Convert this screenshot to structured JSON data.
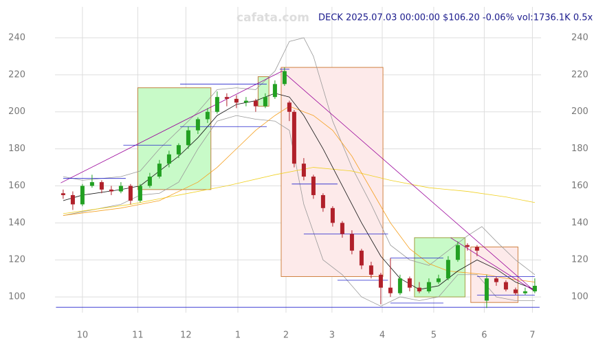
{
  "chart_data": {
    "type": "candlestick",
    "title": "DECK 2025.07.03 00:00:00 $106.20 -0.06% vol:1736.1K 0.5x",
    "watermark": "cafata.com",
    "xlim": [
      -11.4,
      190.6
    ],
    "ylim": [
      91.5,
      256.7
    ],
    "xticks": [
      {
        "value": 0,
        "label": "10"
      },
      {
        "value": 23,
        "label": "11"
      },
      {
        "value": 43,
        "label": "12"
      },
      {
        "value": 64.6,
        "label": "1"
      },
      {
        "value": 84.6,
        "label": "2"
      },
      {
        "value": 103.7,
        "label": "3"
      },
      {
        "value": 124.6,
        "label": "4"
      },
      {
        "value": 146,
        "label": "5"
      },
      {
        "value": 167,
        "label": "6"
      },
      {
        "value": 187,
        "label": "7"
      }
    ],
    "yticks": [
      100,
      120,
      140,
      160,
      180,
      200,
      220,
      240
    ],
    "grid": true,
    "up_color": "#22a022",
    "down_color": "#b0202a",
    "candles": [
      [
        -8,
        156,
        158,
        153,
        155
      ],
      [
        -4,
        155,
        157,
        147,
        150
      ],
      [
        0,
        150,
        161,
        149,
        160
      ],
      [
        4,
        160,
        166,
        159,
        162
      ],
      [
        8,
        162,
        163,
        156,
        158
      ],
      [
        12,
        158,
        160,
        155,
        157
      ],
      [
        16,
        157,
        162,
        156,
        160
      ],
      [
        20,
        160,
        161,
        150,
        152
      ],
      [
        24,
        152,
        161,
        151,
        160
      ],
      [
        28,
        160,
        167,
        159,
        165
      ],
      [
        32,
        165,
        174,
        164,
        172
      ],
      [
        36,
        172,
        179,
        170,
        177
      ],
      [
        40,
        177,
        183,
        175,
        182
      ],
      [
        44,
        182,
        192,
        180,
        190
      ],
      [
        48,
        190,
        197,
        188,
        196
      ],
      [
        52,
        196,
        202,
        194,
        200
      ],
      [
        56,
        200,
        211,
        199,
        208
      ],
      [
        60,
        208,
        210,
        203,
        207
      ],
      [
        64,
        207,
        209,
        202,
        205
      ],
      [
        68,
        205,
        208,
        203,
        206
      ],
      [
        72,
        206,
        207,
        200,
        203
      ],
      [
        76,
        203,
        210,
        202,
        208
      ],
      [
        80,
        208,
        217,
        207,
        215
      ],
      [
        84,
        215,
        224,
        214,
        222
      ],
      [
        86,
        205,
        206,
        195,
        200
      ],
      [
        88,
        200,
        201,
        170,
        172
      ],
      [
        92,
        172,
        175,
        163,
        165
      ],
      [
        96,
        165,
        166,
        153,
        155
      ],
      [
        100,
        155,
        156,
        146,
        148
      ],
      [
        104,
        148,
        149,
        138,
        140
      ],
      [
        108,
        140,
        141,
        132,
        134
      ],
      [
        112,
        134,
        136,
        123,
        125
      ],
      [
        116,
        125,
        126,
        115,
        117
      ],
      [
        120,
        117,
        119,
        110,
        112
      ],
      [
        124,
        112,
        113,
        96,
        105
      ],
      [
        128,
        105,
        121,
        100,
        102
      ],
      [
        132,
        102,
        112,
        101,
        110
      ],
      [
        136,
        110,
        111,
        103,
        105
      ],
      [
        140,
        105,
        108,
        102,
        103
      ],
      [
        144,
        103,
        110,
        102,
        108
      ],
      [
        148,
        108,
        112,
        107,
        110
      ],
      [
        152,
        110,
        122,
        109,
        120
      ],
      [
        156,
        120,
        130,
        119,
        128
      ],
      [
        160,
        128,
        129,
        125,
        127
      ],
      [
        164,
        127,
        128,
        122,
        125
      ],
      [
        168,
        98,
        112,
        94,
        110
      ],
      [
        172,
        110,
        111,
        106,
        108
      ],
      [
        176,
        108,
        109,
        103,
        104
      ],
      [
        180,
        104,
        105,
        101,
        102
      ],
      [
        184,
        102,
        105,
        101,
        103
      ],
      [
        188,
        103,
        110,
        102,
        106
      ]
    ],
    "zones": [
      {
        "x": [
          23,
          53.4
        ],
        "y": [
          158,
          213
        ],
        "fill": "#c8fac8",
        "stroke": "#c08040"
      },
      {
        "x": [
          73,
          77.5
        ],
        "y": [
          203,
          219
        ],
        "fill": "#c8fac8",
        "stroke": "#c08040"
      },
      {
        "x": [
          82.6,
          124.9
        ],
        "y": [
          111,
          224
        ],
        "fill": "#fdeaea",
        "stroke": "#d08040"
      },
      {
        "x": [
          138,
          159
        ],
        "y": [
          100,
          132
        ],
        "fill": "#c8fac8",
        "stroke": "#a0a040"
      },
      {
        "x": [
          161.4,
          181
        ],
        "y": [
          97,
          127
        ],
        "fill": "#fdeaea",
        "stroke": "#d08040"
      }
    ],
    "lines": [
      {
        "color": "#999999",
        "x": [
          -8,
          0,
          16,
          24,
          32,
          40,
          48,
          56,
          64,
          72,
          80,
          86,
          92,
          96,
          104,
          112,
          120,
          128,
          136,
          144,
          152,
          160,
          166,
          172,
          180,
          188
        ],
        "values": [
          165,
          163,
          165,
          168,
          180,
          190,
          200,
          212,
          213,
          212,
          222,
          238,
          240,
          230,
          195,
          170,
          150,
          128,
          120,
          117,
          125,
          133,
          138,
          130,
          120,
          112
        ]
      },
      {
        "color": "#999999",
        "x": [
          -8,
          0,
          16,
          24,
          32,
          40,
          48,
          56,
          64,
          72,
          80,
          86,
          92,
          100,
          108,
          116,
          124,
          132,
          140,
          148,
          156,
          164,
          172,
          180,
          188
        ],
        "values": [
          144,
          146,
          150,
          155,
          156,
          162,
          180,
          195,
          198,
          196,
          195,
          190,
          150,
          120,
          112,
          100,
          95,
          100,
          98,
          100,
          112,
          112,
          100,
          98,
          98
        ]
      },
      {
        "color": "#f0d020",
        "x": [
          -8,
          20,
          40,
          60,
          80,
          96,
          112,
          128,
          144,
          160,
          176,
          188
        ],
        "values": [
          145,
          150,
          155,
          160,
          166,
          170,
          168,
          163,
          159,
          157,
          154,
          151
        ]
      },
      {
        "color": "#f5a020",
        "x": [
          -8,
          16,
          32,
          48,
          56,
          64,
          72,
          80,
          86,
          96,
          104,
          112,
          120,
          128,
          136,
          144,
          152,
          160,
          168,
          176,
          188
        ],
        "values": [
          144,
          148,
          152,
          162,
          170,
          180,
          190,
          198,
          203,
          198,
          190,
          176,
          158,
          140,
          126,
          118,
          114,
          113,
          112,
          110,
          108
        ]
      },
      {
        "color": "#111111",
        "x": [
          -8,
          0,
          16,
          24,
          32,
          40,
          48,
          56,
          64,
          72,
          80,
          86,
          92,
          100,
          108,
          116,
          124,
          132,
          140,
          148,
          156,
          164,
          172,
          180,
          188
        ],
        "values": [
          152,
          155,
          158,
          160,
          168,
          176,
          186,
          198,
          204,
          206,
          210,
          208,
          198,
          180,
          160,
          140,
          122,
          110,
          104,
          106,
          114,
          120,
          115,
          108,
          104
        ]
      }
    ],
    "trend_color": "#990099",
    "trendlines": [
      {
        "x": [
          -9,
          83
        ],
        "values": [
          161.6,
          222
        ]
      },
      {
        "x": [
          83,
          188
        ],
        "values": [
          222,
          103
        ]
      },
      {
        "x": [
          153,
          188
        ],
        "values": [
          132,
          103
        ]
      }
    ],
    "level_color": "#2020cc",
    "levels": [
      {
        "x": [
          -8,
          18
        ],
        "value": 164
      },
      {
        "x": [
          17,
          37
        ],
        "value": 182
      },
      {
        "x": [
          40.6,
          76.6
        ],
        "value": 215
      },
      {
        "x": [
          40.6,
          76.6
        ],
        "value": 192
      },
      {
        "x": [
          82,
          86
        ],
        "value": 223
      },
      {
        "x": [
          87,
          106
        ],
        "value": 161
      },
      {
        "x": [
          92,
          127
        ],
        "value": 134
      },
      {
        "x": [
          106,
          127
        ],
        "value": 109
      },
      {
        "x": [
          128,
          150
        ],
        "value": 121
      },
      {
        "x": [
          128,
          150
        ],
        "value": 96.7
      },
      {
        "x": [
          164,
          188
        ],
        "value": 111
      },
      {
        "x": [
          164,
          188
        ],
        "value": 101
      },
      {
        "x": [
          -11,
          190
        ],
        "value": 94.4
      }
    ]
  }
}
